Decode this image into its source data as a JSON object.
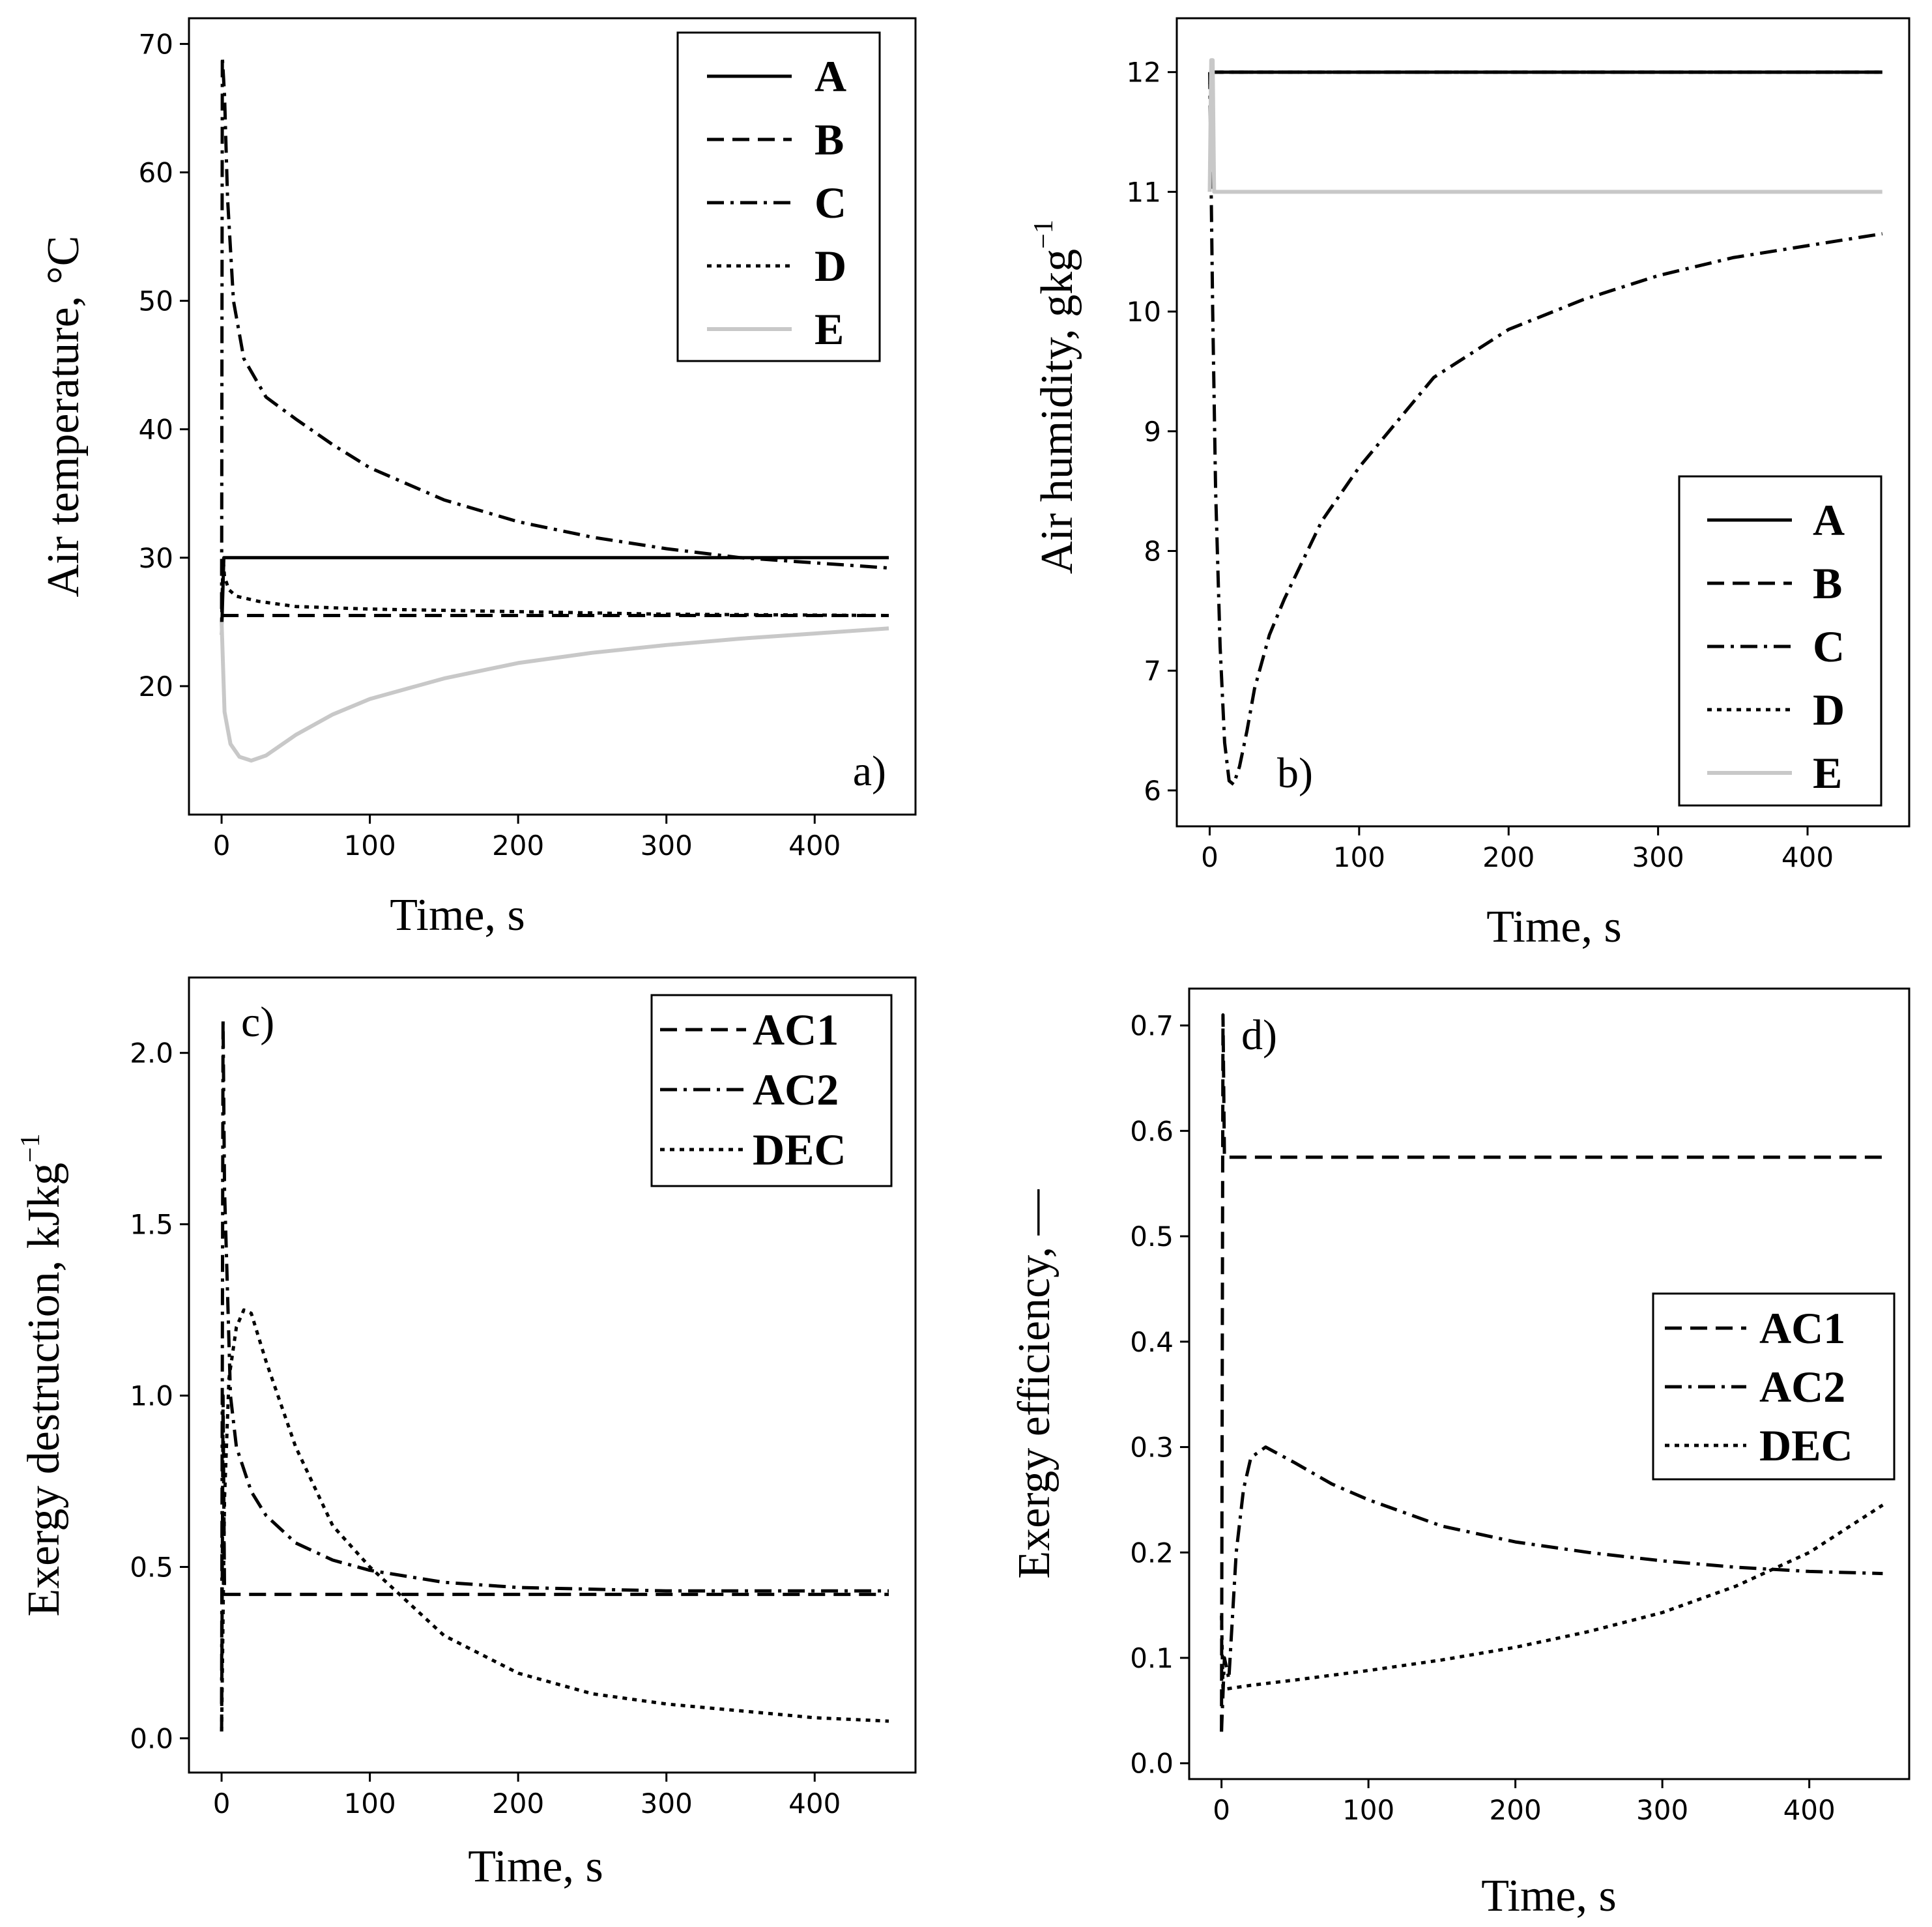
{
  "chart_data": [
    {
      "type": "line",
      "panel_label": "a)",
      "xlabel": "Time, s",
      "ylabel": "Air temperature, °C",
      "xlim": [
        -22,
        468
      ],
      "ylim": [
        10,
        72
      ],
      "xticks": [
        0,
        100,
        200,
        300,
        400
      ],
      "yticks": [
        20,
        30,
        40,
        50,
        60,
        70
      ],
      "legend_position": "upper-right",
      "series": [
        {
          "name": "A",
          "style": "solid",
          "color": "#000000",
          "points": [
            [
              0,
              24
            ],
            [
              1.5,
              30
            ],
            [
              450,
              30
            ]
          ]
        },
        {
          "name": "B",
          "style": "dashed",
          "color": "#000000",
          "points": [
            [
              0,
              25.5
            ],
            [
              450,
              25.5
            ]
          ]
        },
        {
          "name": "C",
          "style": "dashdot",
          "color": "#000000",
          "points": [
            [
              0,
              26
            ],
            [
              0.5,
              69
            ],
            [
              2,
              66
            ],
            [
              4,
              58
            ],
            [
              8,
              50
            ],
            [
              15,
              45.5
            ],
            [
              30,
              42.5
            ],
            [
              50,
              40.8
            ],
            [
              75,
              38.8
            ],
            [
              100,
              37
            ],
            [
              150,
              34.5
            ],
            [
              200,
              32.8
            ],
            [
              250,
              31.6
            ],
            [
              300,
              30.7
            ],
            [
              350,
              30
            ],
            [
              400,
              29.6
            ],
            [
              450,
              29.2
            ]
          ]
        },
        {
          "name": "D",
          "style": "dotted",
          "color": "#000000",
          "points": [
            [
              0,
              25
            ],
            [
              1,
              30
            ],
            [
              2,
              28.5
            ],
            [
              5,
              27.5
            ],
            [
              10,
              27
            ],
            [
              25,
              26.6
            ],
            [
              50,
              26.2
            ],
            [
              100,
              26
            ],
            [
              200,
              25.8
            ],
            [
              300,
              25.6
            ],
            [
              450,
              25.5
            ]
          ]
        },
        {
          "name": "E",
          "style": "solid",
          "color": "#c8c8c8",
          "points": [
            [
              0,
              25
            ],
            [
              2,
              18
            ],
            [
              6,
              15.5
            ],
            [
              12,
              14.5
            ],
            [
              20,
              14.2
            ],
            [
              30,
              14.6
            ],
            [
              50,
              16.2
            ],
            [
              75,
              17.8
            ],
            [
              100,
              19
            ],
            [
              150,
              20.6
            ],
            [
              200,
              21.8
            ],
            [
              250,
              22.6
            ],
            [
              300,
              23.2
            ],
            [
              350,
              23.7
            ],
            [
              400,
              24.1
            ],
            [
              450,
              24.5
            ]
          ]
        }
      ]
    },
    {
      "type": "line",
      "panel_label": "b)",
      "xlabel": "Time, s",
      "ylabel": "Air humidity, gkg",
      "ylabel_sup": "−1",
      "xlim": [
        -22,
        468
      ],
      "ylim": [
        5.7,
        12.45
      ],
      "xticks": [
        0,
        100,
        200,
        300,
        400
      ],
      "yticks": [
        6,
        7,
        8,
        9,
        10,
        11,
        12
      ],
      "legend_position": "lower-right",
      "series": [
        {
          "name": "A",
          "style": "solid",
          "color": "#000000",
          "points": [
            [
              0,
              11.9
            ],
            [
              2,
              12
            ],
            [
              450,
              12
            ]
          ]
        },
        {
          "name": "B",
          "style": "dashed",
          "color": "#000000",
          "points": [
            [
              0,
              11.95
            ],
            [
              2,
              12
            ],
            [
              450,
              12
            ]
          ]
        },
        {
          "name": "C",
          "style": "dashdot",
          "color": "#000000",
          "points": [
            [
              0,
              12
            ],
            [
              1,
              11
            ],
            [
              2,
              10
            ],
            [
              4,
              8.5
            ],
            [
              7,
              7.2
            ],
            [
              10,
              6.4
            ],
            [
              13,
              6.08
            ],
            [
              16,
              6.05
            ],
            [
              20,
              6.2
            ],
            [
              25,
              6.5
            ],
            [
              30,
              6.85
            ],
            [
              40,
              7.3
            ],
            [
              50,
              7.6
            ],
            [
              75,
              8.25
            ],
            [
              100,
              8.7
            ],
            [
              150,
              9.45
            ],
            [
              200,
              9.85
            ],
            [
              250,
              10.1
            ],
            [
              300,
              10.3
            ],
            [
              350,
              10.45
            ],
            [
              400,
              10.55
            ],
            [
              450,
              10.65
            ]
          ]
        },
        {
          "name": "D",
          "style": "dotted",
          "color": "#000000",
          "points": [
            [
              0,
              12
            ],
            [
              3,
              12
            ],
            [
              450,
              12
            ]
          ]
        },
        {
          "name": "E",
          "style": "solid",
          "color": "#c8c8c8",
          "points": [
            [
              0,
              11
            ],
            [
              1,
              12.1
            ],
            [
              2,
              12.1
            ],
            [
              3,
              11
            ],
            [
              450,
              11
            ]
          ]
        }
      ]
    },
    {
      "type": "line",
      "panel_label": "c)",
      "xlabel": "Time, s",
      "ylabel": "Exergy destruction, kJkg",
      "ylabel_sup": "−1",
      "xlim": [
        -22,
        468
      ],
      "ylim": [
        -0.1,
        2.22
      ],
      "xticks": [
        0,
        100,
        200,
        300,
        400
      ],
      "yticks": [
        0.0,
        0.5,
        1.0,
        1.5,
        2.0
      ],
      "legend_position": "upper-right",
      "series": [
        {
          "name": "AC1",
          "style": "dashed",
          "color": "#000000",
          "points": [
            [
              0,
              0.02
            ],
            [
              1,
              1.0
            ],
            [
              2,
              0.42
            ],
            [
              450,
              0.42
            ]
          ]
        },
        {
          "name": "AC2",
          "style": "dashdot",
          "color": "#000000",
          "points": [
            [
              0,
              0.1
            ],
            [
              1,
              2.1
            ],
            [
              2,
              1.6
            ],
            [
              4,
              1.3
            ],
            [
              6,
              1.0
            ],
            [
              10,
              0.85
            ],
            [
              20,
              0.72
            ],
            [
              30,
              0.65
            ],
            [
              50,
              0.57
            ],
            [
              75,
              0.52
            ],
            [
              100,
              0.49
            ],
            [
              150,
              0.455
            ],
            [
              200,
              0.44
            ],
            [
              300,
              0.43
            ],
            [
              450,
              0.43
            ]
          ]
        },
        {
          "name": "DEC",
          "style": "dotted",
          "color": "#000000",
          "points": [
            [
              0,
              0.02
            ],
            [
              2,
              0.7
            ],
            [
              5,
              1.05
            ],
            [
              10,
              1.2
            ],
            [
              15,
              1.25
            ],
            [
              20,
              1.24
            ],
            [
              30,
              1.1
            ],
            [
              50,
              0.85
            ],
            [
              75,
              0.62
            ],
            [
              100,
              0.5
            ],
            [
              150,
              0.3
            ],
            [
              200,
              0.19
            ],
            [
              250,
              0.13
            ],
            [
              300,
              0.1
            ],
            [
              350,
              0.08
            ],
            [
              400,
              0.06
            ],
            [
              450,
              0.05
            ]
          ]
        }
      ]
    },
    {
      "type": "line",
      "panel_label": "d)",
      "xlabel": "Time, s",
      "ylabel": "Exergy efficiency, —",
      "xlim": [
        -22,
        468
      ],
      "ylim": [
        -0.015,
        0.735
      ],
      "xticks": [
        0,
        100,
        200,
        300,
        400
      ],
      "yticks": [
        0.0,
        0.1,
        0.2,
        0.3,
        0.4,
        0.5,
        0.6,
        0.7
      ],
      "legend_position": "center-right",
      "series": [
        {
          "name": "AC1",
          "style": "dashed",
          "color": "#000000",
          "points": [
            [
              0,
              0.03
            ],
            [
              1,
              0.71
            ],
            [
              2,
              0.575
            ],
            [
              450,
              0.575
            ]
          ]
        },
        {
          "name": "AC2",
          "style": "dashdot",
          "color": "#000000",
          "points": [
            [
              0,
              0.03
            ],
            [
              2,
              0.1
            ],
            [
              5,
              0.08
            ],
            [
              10,
              0.2
            ],
            [
              15,
              0.26
            ],
            [
              20,
              0.29
            ],
            [
              30,
              0.3
            ],
            [
              50,
              0.285
            ],
            [
              75,
              0.265
            ],
            [
              100,
              0.25
            ],
            [
              150,
              0.225
            ],
            [
              200,
              0.21
            ],
            [
              250,
              0.2
            ],
            [
              300,
              0.192
            ],
            [
              350,
              0.186
            ],
            [
              400,
              0.182
            ],
            [
              450,
              0.18
            ]
          ]
        },
        {
          "name": "DEC",
          "style": "dotted",
          "color": "#000000",
          "points": [
            [
              0,
              0.14
            ],
            [
              1,
              0.07
            ],
            [
              20,
              0.074
            ],
            [
              50,
              0.079
            ],
            [
              100,
              0.088
            ],
            [
              150,
              0.098
            ],
            [
              200,
              0.11
            ],
            [
              250,
              0.125
            ],
            [
              300,
              0.143
            ],
            [
              350,
              0.168
            ],
            [
              400,
              0.2
            ],
            [
              450,
              0.245
            ]
          ]
        }
      ]
    }
  ]
}
